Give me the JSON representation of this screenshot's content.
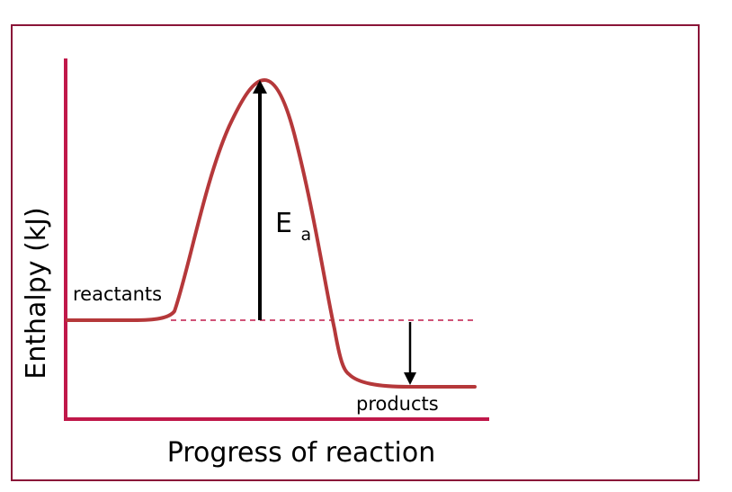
{
  "labels": {
    "y_axis": "Enthalpy (kJ)",
    "x_axis": "Progress of reaction",
    "reactants": "reactants",
    "products": "products",
    "activation_energy_main": "E",
    "activation_energy_sub": "a"
  },
  "colors": {
    "frame": "#8a1538",
    "axes": "#c0184a",
    "curve": "#b5383a",
    "dashed_line": "#c0184a",
    "arrow": "#000000"
  },
  "icons": {
    "activation_arrow": "arrow-up-icon",
    "enthalpy_change_arrow": "arrow-down-icon"
  }
}
